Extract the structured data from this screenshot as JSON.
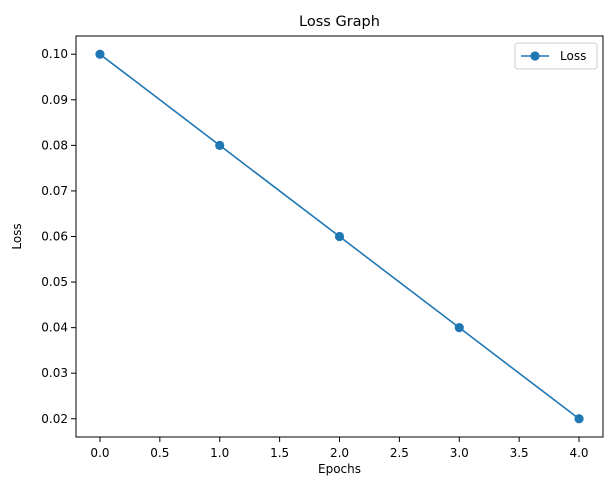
{
  "chart_data": {
    "type": "line",
    "title": "Loss Graph",
    "xlabel": "Epochs",
    "ylabel": "Loss",
    "xlim": [
      -0.2,
      4.2
    ],
    "ylim": [
      0.016,
      0.104
    ],
    "xticks": [
      "0.0",
      "0.5",
      "1.0",
      "1.5",
      "2.0",
      "2.5",
      "3.0",
      "3.5",
      "4.0"
    ],
    "yticks": [
      "0.02",
      "0.03",
      "0.04",
      "0.05",
      "0.06",
      "0.07",
      "0.08",
      "0.09",
      "0.10"
    ],
    "grid": false,
    "legend_position": "top-right",
    "series": [
      {
        "name": "Loss",
        "color": "#1f77b4",
        "marker": "circle",
        "x": [
          0,
          1,
          2,
          3,
          4
        ],
        "y": [
          0.1,
          0.08,
          0.06,
          0.04,
          0.02
        ]
      }
    ]
  }
}
